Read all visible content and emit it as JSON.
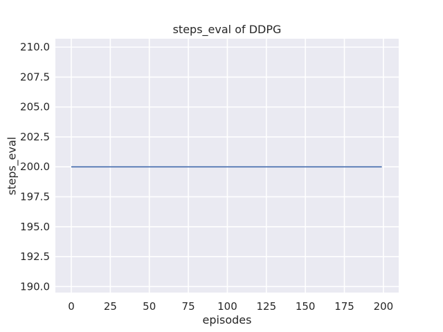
{
  "chart_data": {
    "type": "line",
    "title": "steps_eval of DDPG",
    "xlabel": "episodes",
    "ylabel": "steps_eval",
    "series": [
      {
        "name": "steps_eval",
        "color": "#4c72b0",
        "x": [
          0,
          199
        ],
        "y": [
          200,
          200
        ],
        "note": "constant horizontal line at steps_eval = 200 for all episodes"
      }
    ],
    "xticks": [
      0,
      25,
      50,
      75,
      100,
      125,
      150,
      175,
      200
    ],
    "xtick_labels": [
      "0",
      "25",
      "50",
      "75",
      "100",
      "125",
      "150",
      "175",
      "200"
    ],
    "yticks": [
      190.0,
      192.5,
      195.0,
      197.5,
      200.0,
      202.5,
      205.0,
      207.5,
      210.0
    ],
    "ytick_labels": [
      "190.0",
      "192.5",
      "195.0",
      "197.5",
      "200.0",
      "202.5",
      "205.0",
      "207.5",
      "210.0"
    ],
    "xlim": [
      -10.2,
      209.8
    ],
    "ylim": [
      189.5,
      210.7
    ],
    "grid": true,
    "legend": false,
    "style": {
      "fig_bg": "#ffffff",
      "axes_bg": "#eaeaf2",
      "grid_color": "#ffffff",
      "text_color": "#262626",
      "line_width": 1.8
    }
  }
}
